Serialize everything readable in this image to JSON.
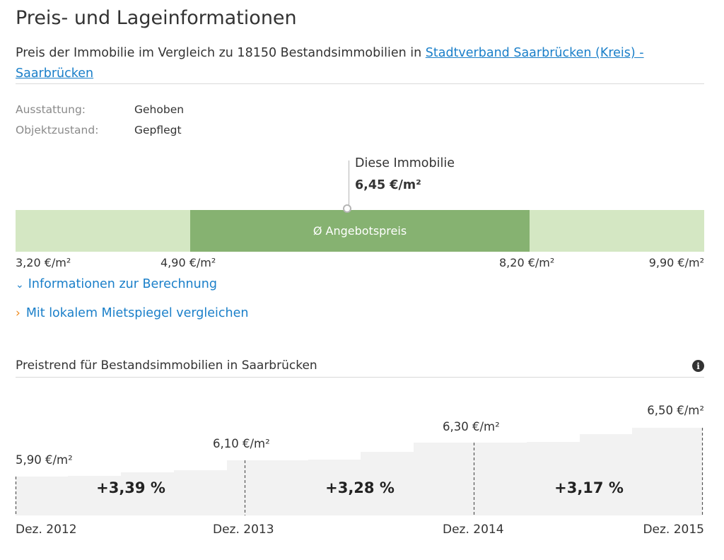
{
  "header": {
    "title": "Preis- und Lageinformationen",
    "subtitle_prefix": "Preis der Immobilie im Vergleich zu 18150 Bestandsimmobilien in ",
    "location_link": "Stadtverband Saarbrücken (Kreis) - Saarbrücken"
  },
  "details": [
    {
      "label": "Ausstattung:",
      "value": "Gehoben"
    },
    {
      "label": "Objektzustand:",
      "value": "Gepflegt"
    }
  ],
  "price_scale": {
    "marker_label": "Diese Immobilie",
    "marker_price": "6,45 €/m²",
    "band_label": "Ø Angebotspreis",
    "ticks": [
      "3,20 €/m²",
      "4,90 €/m²",
      "8,20 €/m²",
      "9,90 €/m²"
    ],
    "colors": {
      "outer": "#d4e7c3",
      "inner": "#86b271"
    }
  },
  "links": {
    "calculation_info": "Informationen zur Berechnung",
    "compare_rent_index": "Mit lokalem Mietspiegel vergleichen"
  },
  "trend": {
    "title": "Preistrend für Bestandsimmobilien in Saarbrücken",
    "info_icon": "info-icon",
    "points": [
      {
        "year": "Dez. 2012",
        "price": "5,90 €/m²",
        "value": 5.9
      },
      {
        "year": "Dez. 2013",
        "price": "6,10 €/m²",
        "value": 6.1
      },
      {
        "year": "Dez. 2014",
        "price": "6,30 €/m²",
        "value": 6.3
      },
      {
        "year": "Dez. 2015",
        "price": "6,50 €/m²",
        "value": 6.5
      }
    ],
    "changes": [
      "+3,39 %",
      "+3,28 %",
      "+3,17 %"
    ]
  }
}
